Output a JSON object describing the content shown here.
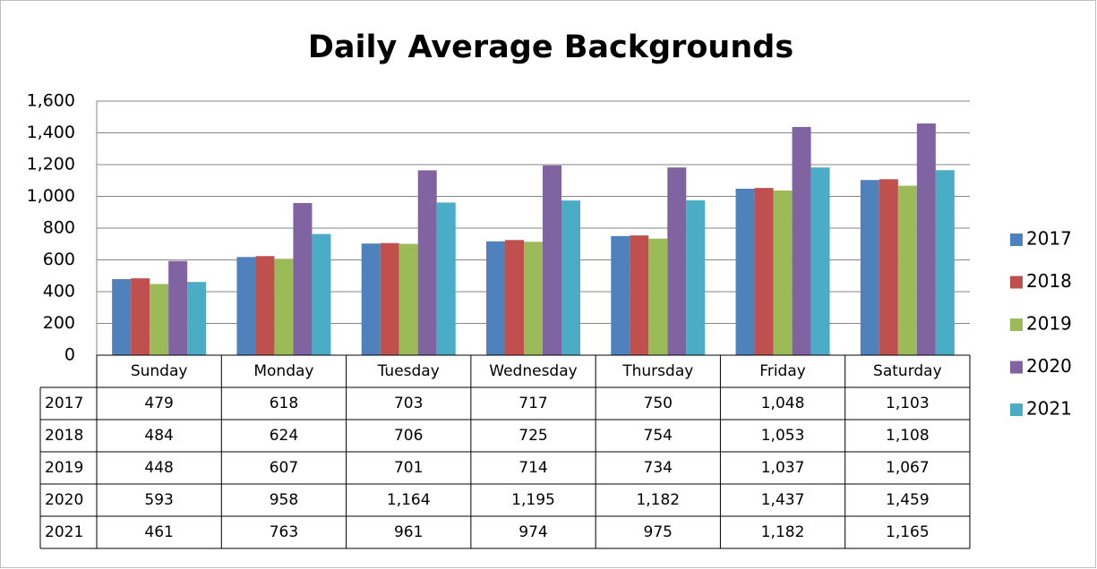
{
  "chart_data": {
    "type": "bar",
    "title": "Daily Average Backgrounds",
    "categories": [
      "Sunday",
      "Monday",
      "Tuesday",
      "Wednesday",
      "Thursday",
      "Friday",
      "Saturday"
    ],
    "series": [
      {
        "name": "2017",
        "color": "#4f81bd",
        "values": [
          479,
          618,
          703,
          717,
          750,
          1048,
          1103
        ],
        "value_labels": [
          "479",
          "618",
          "703",
          "717",
          "750",
          "1,048",
          "1,103"
        ]
      },
      {
        "name": "2018",
        "color": "#c0504d",
        "values": [
          484,
          624,
          706,
          725,
          754,
          1053,
          1108
        ],
        "value_labels": [
          "484",
          "624",
          "706",
          "725",
          "754",
          "1,053",
          "1,108"
        ]
      },
      {
        "name": "2019",
        "color": "#9bbb59",
        "values": [
          448,
          607,
          701,
          714,
          734,
          1037,
          1067
        ],
        "value_labels": [
          "448",
          "607",
          "701",
          "714",
          "734",
          "1,037",
          "1,067"
        ]
      },
      {
        "name": "2020",
        "color": "#8064a2",
        "values": [
          593,
          958,
          1164,
          1195,
          1182,
          1437,
          1459
        ],
        "value_labels": [
          "593",
          "958",
          "1,164",
          "1,195",
          "1,182",
          "1,437",
          "1,459"
        ]
      },
      {
        "name": "2021",
        "color": "#4bacc6",
        "values": [
          461,
          763,
          961,
          974,
          975,
          1182,
          1165
        ],
        "value_labels": [
          "461",
          "763",
          "961",
          "974",
          "975",
          "1,182",
          "1,165"
        ]
      }
    ],
    "ylim": [
      0,
      1600
    ],
    "yticks": [
      0,
      200,
      400,
      600,
      800,
      {
        "value": 1000,
        "label": "1,000"
      },
      {
        "value": 1200,
        "label": "1,200"
      },
      {
        "value": 1400,
        "label": "1,400"
      },
      {
        "value": 1600,
        "label": "1,600"
      }
    ],
    "grid": true,
    "legend": "right"
  }
}
